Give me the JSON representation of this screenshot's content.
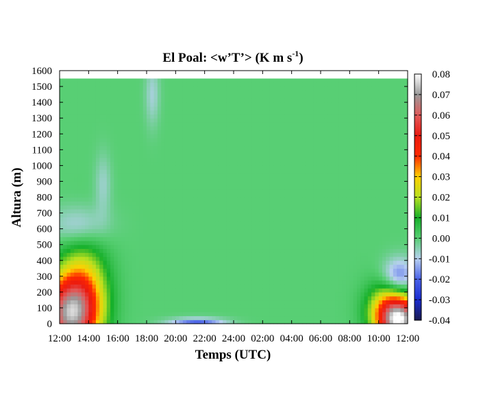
{
  "chart_data": {
    "type": "heatmap",
    "title": "El Poal: <w’T’> (K m s",
    "title_superscript": "-1",
    "title_suffix": ")",
    "xlabel": "Temps (UTC)",
    "ylabel": "Altura (m)",
    "x_ticks": [
      "12:00",
      "14:00",
      "16:00",
      "18:00",
      "20:00",
      "22:00",
      "24:00",
      "02:00",
      "04:00",
      "06:00",
      "08:00",
      "10:00",
      "12:00"
    ],
    "x_range_hours": [
      0,
      24
    ],
    "y_ticks": [
      0,
      100,
      200,
      300,
      400,
      500,
      600,
      700,
      800,
      900,
      1000,
      1100,
      1200,
      1300,
      1400,
      1500,
      1600
    ],
    "ylim": [
      0,
      1600
    ],
    "data_top": 1550,
    "colorbar": {
      "ticks": [
        "0.08",
        "0.07",
        "0.06",
        "0.05",
        "0.04",
        "0.03",
        "0.02",
        "0.01",
        "0.00",
        "-0.01",
        "-0.02",
        "-0.03",
        "-0.04"
      ],
      "range": [
        -0.04,
        0.08
      ],
      "stops": [
        {
          "v": -0.04,
          "c": "#1a1a50"
        },
        {
          "v": -0.03,
          "c": "#1a2cd0"
        },
        {
          "v": -0.02,
          "c": "#4a62e8"
        },
        {
          "v": -0.01,
          "c": "#b8d0f0"
        },
        {
          "v": 0.0,
          "c": "#58cf74"
        },
        {
          "v": 0.01,
          "c": "#16b02a"
        },
        {
          "v": 0.02,
          "c": "#b8e020"
        },
        {
          "v": 0.03,
          "c": "#ffd000"
        },
        {
          "v": 0.04,
          "c": "#ff2a00"
        },
        {
          "v": 0.05,
          "c": "#ea1a10"
        },
        {
          "v": 0.06,
          "c": "#e05a5a"
        },
        {
          "v": 0.07,
          "c": "#9a9a9a"
        },
        {
          "v": 0.08,
          "c": "#ffffff"
        }
      ]
    },
    "features": [
      {
        "desc": "afternoon positive flux near surface",
        "hour": 0.6,
        "z": 60,
        "sx": 1.3,
        "sz": 160,
        "amp": 0.058
      },
      {
        "desc": "afternoon positive flux mid",
        "hour": 1.6,
        "z": 200,
        "sx": 1.2,
        "sz": 220,
        "amp": 0.028
      },
      {
        "desc": "entrainment negative flux",
        "hour": 1.3,
        "z": 620,
        "sx": 1.4,
        "sz": 90,
        "amp": -0.011
      },
      {
        "desc": "entrainment negative flux upper",
        "hour": 3.0,
        "z": 880,
        "sx": 0.4,
        "sz": 140,
        "amp": -0.007
      },
      {
        "desc": "evening negative flux near surface",
        "hour": 9.5,
        "z": 0,
        "sx": 1.4,
        "sz": 25,
        "amp": -0.022
      },
      {
        "desc": "late morning positive flux",
        "hour": 23.5,
        "z": 20,
        "sx": 1.0,
        "sz": 90,
        "amp": 0.062
      },
      {
        "desc": "late morning positive flux mid",
        "hour": 22.8,
        "z": 100,
        "sx": 1.1,
        "sz": 120,
        "amp": 0.03
      },
      {
        "desc": "late morning entrainment negative",
        "hour": 23.4,
        "z": 300,
        "sx": 0.8,
        "sz": 80,
        "amp": -0.02
      },
      {
        "desc": "upper layer weak negative streak",
        "hour": 6.4,
        "z": 1450,
        "sx": 0.35,
        "sz": 140,
        "amp": -0.008
      }
    ]
  }
}
